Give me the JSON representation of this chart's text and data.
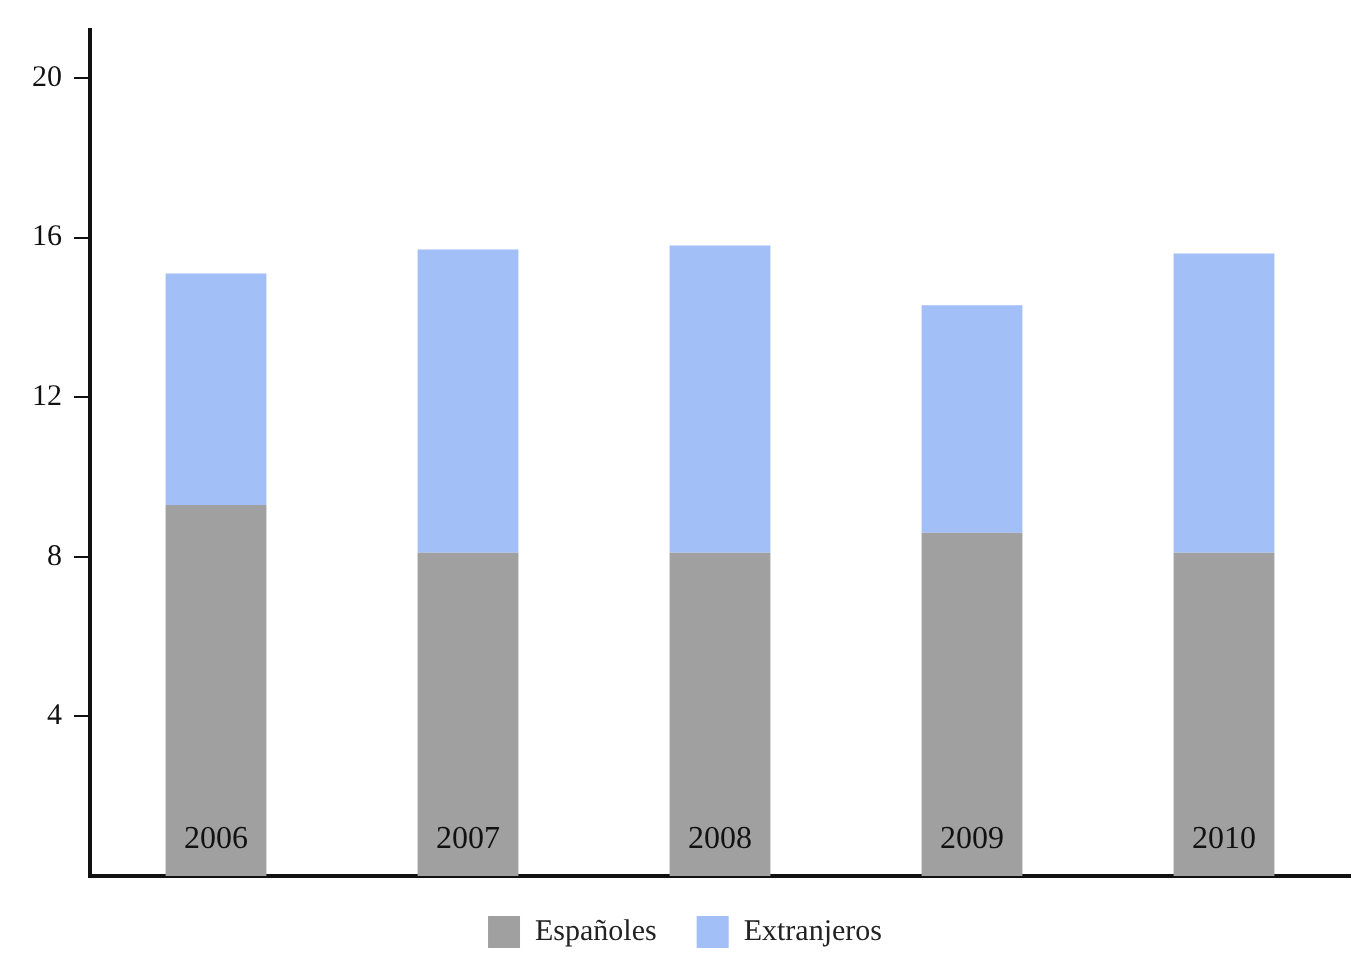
{
  "chart_data": {
    "type": "bar",
    "stacked": true,
    "categories": [
      "2006",
      "2007",
      "2008",
      "2009",
      "2010"
    ],
    "series": [
      {
        "name": "Españoles",
        "color": "#a0a0a0",
        "values": [
          9.3,
          8.1,
          8.1,
          8.6,
          8.1
        ]
      },
      {
        "name": "Extranjeros",
        "color": "#a3bff8",
        "values": [
          5.8,
          7.6,
          7.7,
          5.7,
          7.5
        ]
      }
    ],
    "ylim": [
      0,
      21.2
    ],
    "yticks": [
      4,
      8,
      12,
      16,
      20
    ],
    "grid": false,
    "legend": "bottom"
  }
}
